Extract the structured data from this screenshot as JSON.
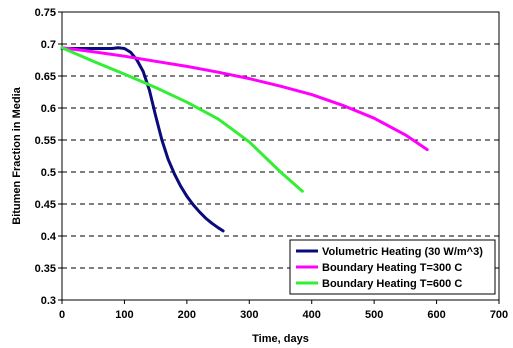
{
  "chart_data": {
    "type": "line",
    "title": "",
    "xlabel": "Time, days",
    "ylabel": "Bitumen Fraction in Media",
    "xlim": [
      0,
      700
    ],
    "ylim": [
      0.3,
      0.75
    ],
    "x_ticks": [
      "0",
      "100",
      "200",
      "300",
      "400",
      "500",
      "600",
      "700"
    ],
    "y_ticks": [
      "0.3",
      "0.35",
      "0.4",
      "0.45",
      "0.5",
      "0.55",
      "0.6",
      "0.65",
      "0.7",
      "0.75"
    ],
    "grid": "horizontal dashed",
    "legend_position": "bottom-right",
    "series": [
      {
        "name": "Volumetric Heating (30 W/m^3)",
        "color": "#0a0a7a",
        "x": [
          0,
          40,
          80,
          90,
          100,
          110,
          120,
          130,
          140,
          150,
          160,
          170,
          180,
          190,
          200,
          210,
          220,
          230,
          240,
          250,
          258
        ],
        "y": [
          0.693,
          0.693,
          0.693,
          0.694,
          0.693,
          0.687,
          0.675,
          0.657,
          0.628,
          0.588,
          0.55,
          0.52,
          0.497,
          0.478,
          0.462,
          0.449,
          0.438,
          0.428,
          0.42,
          0.413,
          0.408
        ]
      },
      {
        "name": "Boundary Heating T=300 C",
        "color": "#ff00ff",
        "x": [
          0,
          50,
          100,
          150,
          200,
          250,
          300,
          350,
          400,
          450,
          500,
          550,
          585
        ],
        "y": [
          0.694,
          0.688,
          0.681,
          0.673,
          0.665,
          0.656,
          0.646,
          0.634,
          0.621,
          0.604,
          0.584,
          0.558,
          0.535
        ]
      },
      {
        "name": "Boundary Heating T=600 C",
        "color": "#33ee33",
        "x": [
          0,
          50,
          100,
          150,
          200,
          250,
          300,
          350,
          385
        ],
        "y": [
          0.694,
          0.673,
          0.653,
          0.632,
          0.609,
          0.583,
          0.547,
          0.5,
          0.47
        ]
      }
    ]
  }
}
